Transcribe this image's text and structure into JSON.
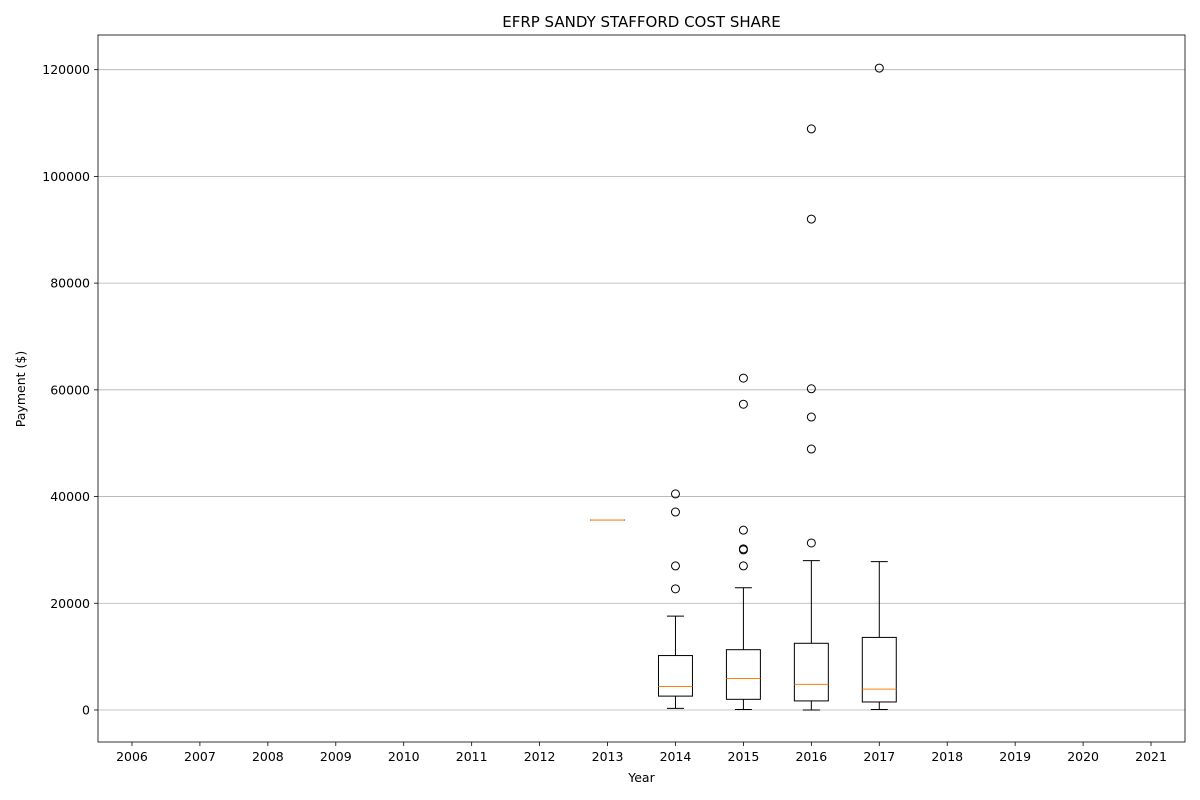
{
  "chart_data": {
    "type": "box",
    "title": "EFRP SANDY STAFFORD COST SHARE",
    "xlabel": "Year",
    "ylabel": "Payment ($)",
    "categories": [
      "2006",
      "2007",
      "2008",
      "2009",
      "2010",
      "2011",
      "2012",
      "2013",
      "2014",
      "2015",
      "2016",
      "2017",
      "2018",
      "2019",
      "2020",
      "2021"
    ],
    "y_ticks": [
      0,
      20000,
      40000,
      60000,
      80000,
      100000,
      120000
    ],
    "ylim": [
      -6000,
      126500
    ],
    "grid": "y-major",
    "box_color": "#000000",
    "median_color": "#ff7f0e",
    "grid_color": "#b0b0b0",
    "boxes": [
      {
        "category": "2013",
        "whisker_low": 35600,
        "q1": 35600,
        "median": 35600,
        "q3": 35600,
        "whisker_high": 35600,
        "outliers": []
      },
      {
        "category": "2014",
        "whisker_low": 300,
        "q1": 2600,
        "median": 4400,
        "q3": 10200,
        "whisker_high": 17600,
        "outliers": [
          22700,
          27000,
          37100,
          40500
        ]
      },
      {
        "category": "2015",
        "whisker_low": 100,
        "q1": 2000,
        "median": 5900,
        "q3": 11300,
        "whisker_high": 22900,
        "outliers": [
          27000,
          30000,
          30200,
          33700,
          57300,
          62200
        ]
      },
      {
        "category": "2016",
        "whisker_low": 0,
        "q1": 1700,
        "median": 4800,
        "q3": 12500,
        "whisker_high": 28000,
        "outliers": [
          31300,
          48900,
          54900,
          60200,
          92000,
          108900
        ]
      },
      {
        "category": "2017",
        "whisker_low": 100,
        "q1": 1500,
        "median": 3900,
        "q3": 13600,
        "whisker_high": 27800,
        "outliers": [
          120300
        ]
      }
    ]
  }
}
